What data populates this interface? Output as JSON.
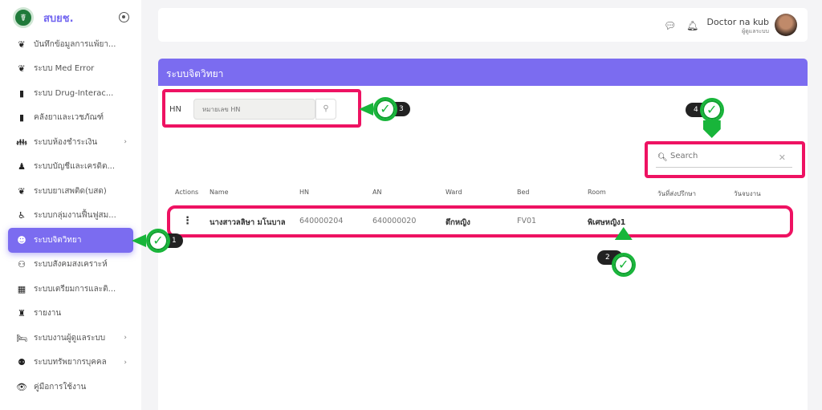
{
  "sidebar": {
    "brand": "สบยช.",
    "items": [
      {
        "label": "บันทึกข้อมูลการแพ้ยา...",
        "icon": "hands-pill-icon"
      },
      {
        "label": "ระบบ Med Error",
        "icon": "hands-pill-icon"
      },
      {
        "label": "ระบบ Drug-Interac...",
        "icon": "medicine-bottle-icon"
      },
      {
        "label": "คลังยาและเวชภัณฑ์",
        "icon": "medicine-bottle-icon"
      },
      {
        "label": "ระบบห้องชำระเงิน",
        "icon": "people-icon",
        "chevron": true
      },
      {
        "label": "ระบบบัญชีและเครดิต...",
        "icon": "cashier-icon"
      },
      {
        "label": "ระบบยาเสพติด(บสด)",
        "icon": "hands-pill-icon"
      },
      {
        "label": "ระบบกลุ่มงานฟื้นฟูสม...",
        "icon": "rehab-icon"
      },
      {
        "label": "ระบบจิตวิทยา",
        "icon": "brain-head-icon",
        "active": true
      },
      {
        "label": "ระบบสังคมสงเคราะห์",
        "icon": "family-icon"
      },
      {
        "label": "ระบบเตรียมการและติ...",
        "icon": "calculator-icon"
      },
      {
        "label": "รายงาน",
        "icon": "report-icon"
      },
      {
        "label": "ระบบงานผู้ดูแลระบบ",
        "icon": "bed-icon",
        "chevron": true
      },
      {
        "label": "ระบบทรัพยากรบุคคล",
        "icon": "hr-icon",
        "chevron": true
      },
      {
        "label": "คู่มือการใช้งาน",
        "icon": "eye-icon"
      }
    ]
  },
  "header": {
    "user_name": "Doctor na kub",
    "user_role": "ผู้ดูแลระบบ"
  },
  "page": {
    "title": "ระบบจิตวิทยา",
    "hn_label": "HN",
    "hn_placeholder": "หมายเลข HN",
    "search_placeholder": "Search"
  },
  "table": {
    "columns": [
      "Actions",
      "Name",
      "HN",
      "AN",
      "Ward",
      "Bed",
      "Room",
      "วันที่ส่งปรึกษา",
      "วันจบงาน"
    ],
    "rows": [
      {
        "name": "นางสาวลลิษา มโนบาล",
        "hn": "640000204",
        "an": "640000020",
        "ward": "ตึกหญิง",
        "bed": "FV01",
        "room": "พิเศษหญิง1",
        "consult_date": "",
        "end_date": ""
      }
    ]
  },
  "annotations": [
    "1",
    "2",
    "3",
    "4"
  ],
  "colors": {
    "accent": "#7b6cf0",
    "highlight": "#ee1262",
    "check": "#18b53a"
  }
}
